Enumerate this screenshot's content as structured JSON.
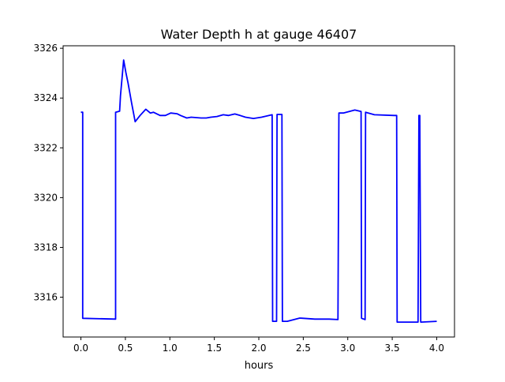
{
  "chart_data": {
    "type": "line",
    "title": "Water Depth h at gauge 46407",
    "xlabel": "hours",
    "ylabel": "",
    "xlim": [
      -0.2,
      4.2
    ],
    "ylim": [
      3314.4,
      3326.1
    ],
    "xticks": [
      0.0,
      0.5,
      1.0,
      1.5,
      2.0,
      2.5,
      3.0,
      3.5,
      4.0
    ],
    "xtick_labels": [
      "0.0",
      "0.5",
      "1.0",
      "1.5",
      "2.0",
      "2.5",
      "3.0",
      "3.5",
      "4.0"
    ],
    "yticks": [
      3316,
      3318,
      3320,
      3322,
      3324,
      3326
    ],
    "ytick_labels": [
      "3316",
      "3318",
      "3320",
      "3322",
      "3324",
      "3326"
    ],
    "grid": false,
    "series": [
      {
        "name": "h",
        "color": "#0000ff",
        "x": [
          0.0,
          0.02,
          0.02,
          0.39,
          0.39,
          0.435,
          0.445,
          0.48,
          0.505,
          0.53,
          0.57,
          0.61,
          0.665,
          0.73,
          0.78,
          0.815,
          0.89,
          0.95,
          1.01,
          1.08,
          1.12,
          1.19,
          1.24,
          1.35,
          1.41,
          1.46,
          1.53,
          1.6,
          1.66,
          1.73,
          1.79,
          1.85,
          1.94,
          2.03,
          2.15,
          2.155,
          2.2,
          2.205,
          2.26,
          2.265,
          2.32,
          2.46,
          2.63,
          2.79,
          2.89,
          2.9,
          2.95,
          3.08,
          3.15,
          3.155,
          3.195,
          3.2,
          3.3,
          3.52,
          3.55,
          3.555,
          3.79,
          3.8,
          3.81,
          3.82,
          3.825,
          4.0
        ],
        "y": [
          3323.43,
          3323.43,
          3315.15,
          3315.12,
          3323.43,
          3323.47,
          3324.1,
          3325.53,
          3325.03,
          3324.6,
          3323.8,
          3323.05,
          3323.3,
          3323.55,
          3323.4,
          3323.43,
          3323.3,
          3323.3,
          3323.4,
          3323.37,
          3323.3,
          3323.2,
          3323.23,
          3323.2,
          3323.2,
          3323.23,
          3323.26,
          3323.33,
          3323.3,
          3323.36,
          3323.3,
          3323.23,
          3323.18,
          3323.23,
          3323.33,
          3315.03,
          3315.03,
          3323.34,
          3323.34,
          3315.03,
          3315.03,
          3315.16,
          3315.12,
          3315.12,
          3315.1,
          3323.4,
          3323.4,
          3323.52,
          3323.46,
          3315.15,
          3315.1,
          3323.43,
          3323.33,
          3323.3,
          3323.3,
          3315.0,
          3315.0,
          3323.3,
          3323.3,
          3315.0,
          3315.0,
          3315.03
        ]
      }
    ]
  }
}
